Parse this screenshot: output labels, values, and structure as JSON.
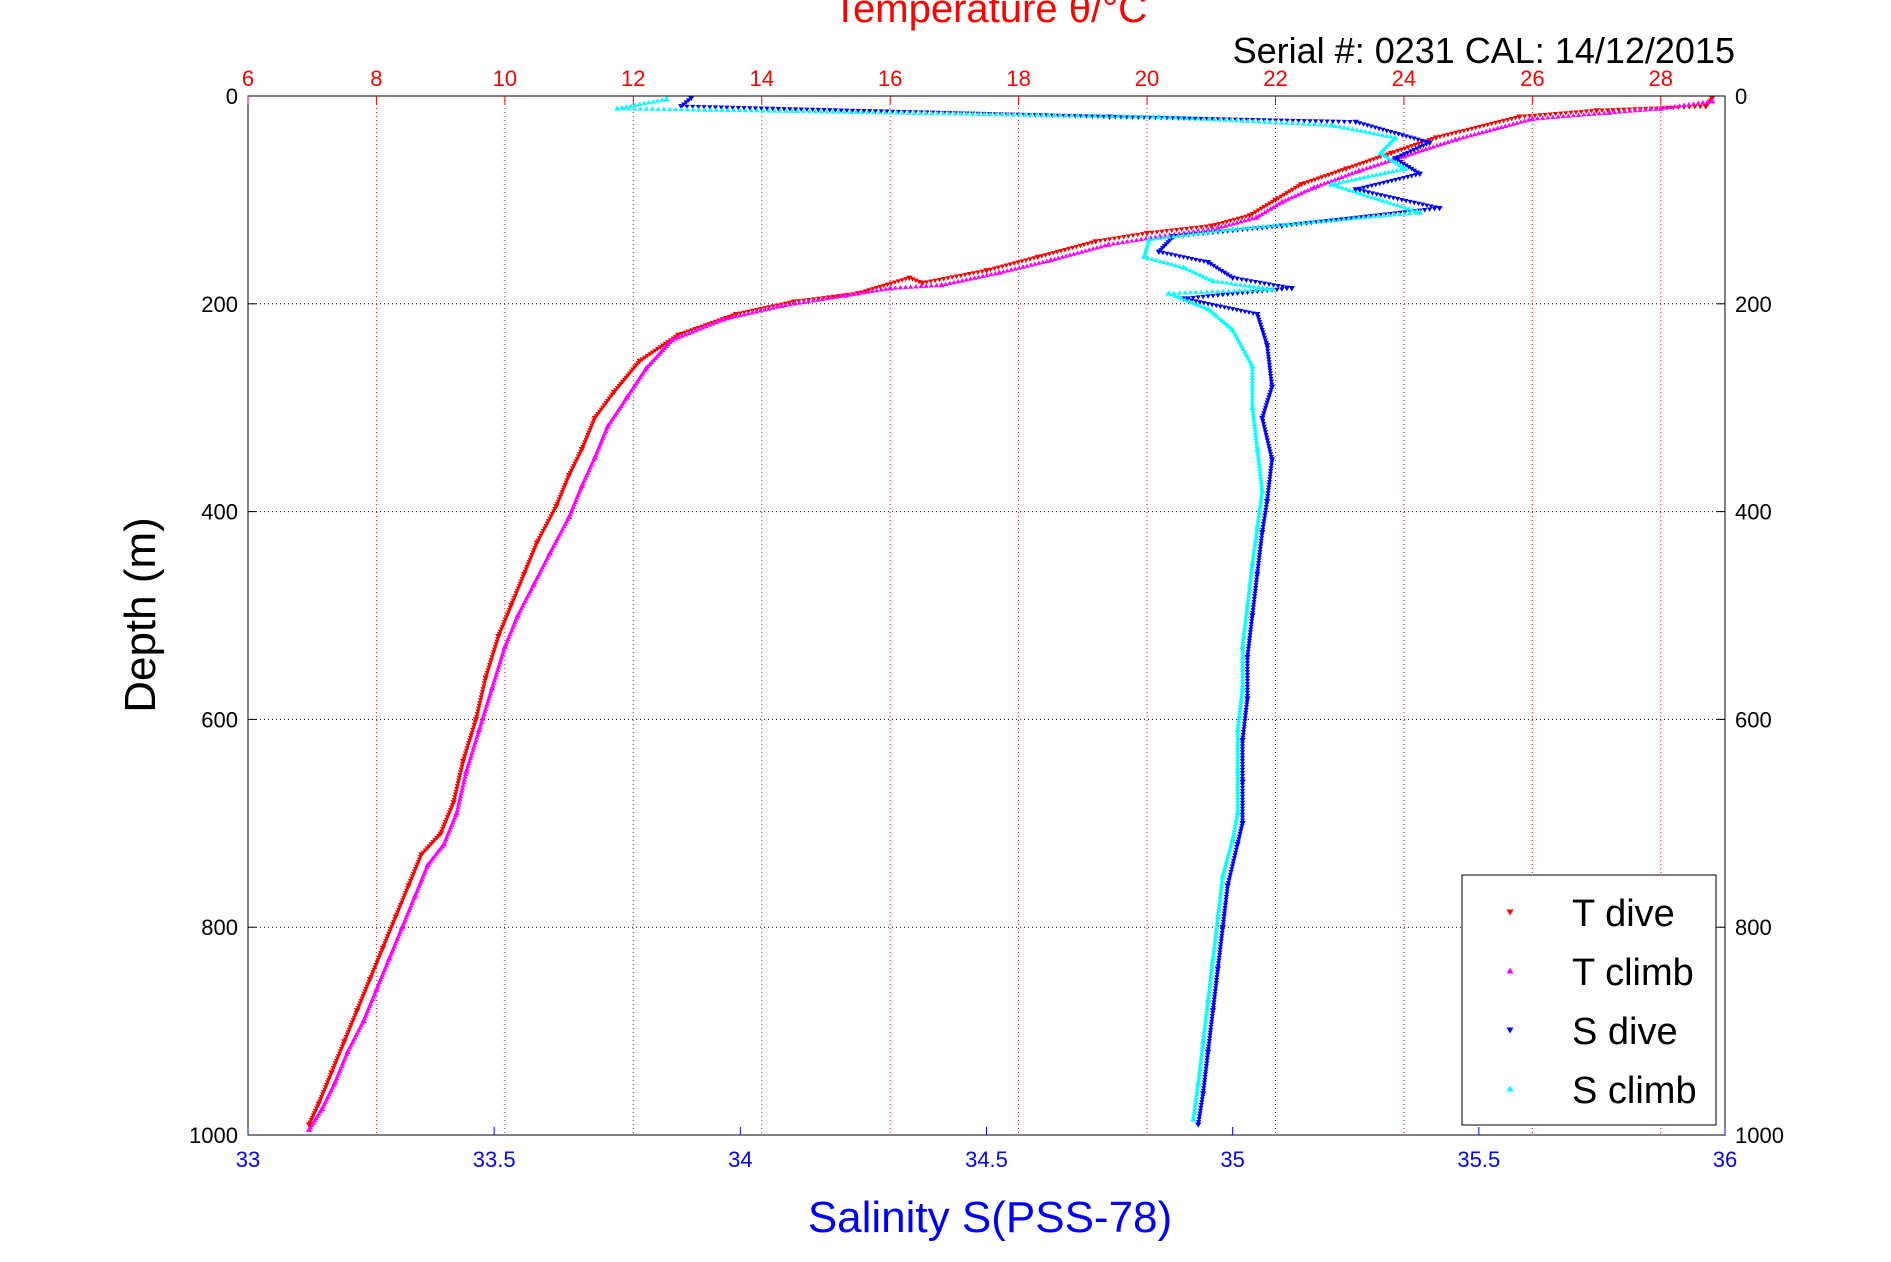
{
  "chart_data": {
    "type": "scatter",
    "title": "Temperature θ/°C",
    "subtitle": "Serial #: 0231  CAL: 14/12/2015",
    "ylabel": "Depth (m)",
    "xlabel_bottom": "Salinity S(PSS-78)",
    "xlabel_top": "Temperature θ/°C",
    "ylim": [
      0,
      1000
    ],
    "y_reversed": true,
    "y_ticks": [
      0,
      200,
      400,
      600,
      800,
      1000
    ],
    "salinity_lim": [
      33,
      36
    ],
    "salinity_ticks": [
      33,
      33.5,
      34,
      34.5,
      35,
      35.5,
      36
    ],
    "temperature_lim": [
      6,
      29
    ],
    "temperature_ticks": [
      6,
      8,
      10,
      12,
      14,
      16,
      18,
      20,
      22,
      24,
      26,
      28
    ],
    "grid": true,
    "legend_placement": "bottom-right",
    "series": [
      {
        "name": "T dive",
        "axis": "temperature",
        "color": "#ff0000",
        "marker": "triangle-down",
        "points": [
          [
            28.8,
            2
          ],
          [
            28.7,
            10
          ],
          [
            27,
            14
          ],
          [
            25.8,
            20
          ],
          [
            24.5,
            40
          ],
          [
            23.8,
            55
          ],
          [
            23.1,
            70
          ],
          [
            22.4,
            85
          ],
          [
            22,
            100
          ],
          [
            21.6,
            115
          ],
          [
            21,
            125
          ],
          [
            20,
            132
          ],
          [
            19.2,
            140
          ],
          [
            18.3,
            155
          ],
          [
            17.5,
            168
          ],
          [
            16.5,
            180
          ],
          [
            16.3,
            175
          ],
          [
            15.5,
            190
          ],
          [
            14.5,
            198
          ],
          [
            13.6,
            210
          ],
          [
            12.7,
            230
          ],
          [
            12.1,
            255
          ],
          [
            11.7,
            285
          ],
          [
            11.4,
            310
          ],
          [
            11.2,
            340
          ],
          [
            11,
            365
          ],
          [
            10.8,
            395
          ],
          [
            10.5,
            430
          ],
          [
            10.3,
            460
          ],
          [
            10.1,
            490
          ],
          [
            9.9,
            520
          ],
          [
            9.7,
            560
          ],
          [
            9.55,
            600
          ],
          [
            9.35,
            640
          ],
          [
            9.2,
            680
          ],
          [
            9.0,
            710
          ],
          [
            8.7,
            730
          ],
          [
            8.5,
            760
          ],
          [
            8.3,
            790
          ],
          [
            8.1,
            820
          ],
          [
            7.9,
            850
          ],
          [
            7.7,
            880
          ],
          [
            7.5,
            910
          ],
          [
            7.3,
            940
          ],
          [
            7.1,
            970
          ],
          [
            6.95,
            990
          ]
        ]
      },
      {
        "name": "T climb",
        "axis": "temperature",
        "color": "#ff00ff",
        "marker": "triangle-up",
        "points": [
          [
            28.8,
            5
          ],
          [
            28.0,
            12
          ],
          [
            27.2,
            16
          ],
          [
            26.0,
            22
          ],
          [
            24.8,
            42
          ],
          [
            24.0,
            58
          ],
          [
            23.3,
            72
          ],
          [
            22.6,
            88
          ],
          [
            22.1,
            102
          ],
          [
            21.7,
            117
          ],
          [
            21.1,
            127
          ],
          [
            20.2,
            135
          ],
          [
            19.4,
            143
          ],
          [
            18.5,
            158
          ],
          [
            17.7,
            170
          ],
          [
            16.8,
            182
          ],
          [
            16.0,
            185
          ],
          [
            15.3,
            192
          ],
          [
            14.3,
            202
          ],
          [
            13.4,
            215
          ],
          [
            12.6,
            235
          ],
          [
            12.2,
            262
          ],
          [
            11.9,
            290
          ],
          [
            11.6,
            318
          ],
          [
            11.4,
            348
          ],
          [
            11.2,
            375
          ],
          [
            11.0,
            405
          ],
          [
            10.7,
            440
          ],
          [
            10.45,
            470
          ],
          [
            10.2,
            500
          ],
          [
            10.0,
            530
          ],
          [
            9.8,
            570
          ],
          [
            9.6,
            610
          ],
          [
            9.4,
            650
          ],
          [
            9.25,
            690
          ],
          [
            9.05,
            720
          ],
          [
            8.8,
            740
          ],
          [
            8.6,
            770
          ],
          [
            8.4,
            800
          ],
          [
            8.2,
            830
          ],
          [
            8.0,
            860
          ],
          [
            7.8,
            890
          ],
          [
            7.55,
            920
          ],
          [
            7.35,
            950
          ],
          [
            7.15,
            975
          ],
          [
            6.95,
            995
          ]
        ]
      },
      {
        "name": "S dive",
        "axis": "salinity",
        "color": "#0000ff",
        "marker": "triangle-down",
        "points": [
          [
            33.9,
            2
          ],
          [
            33.88,
            10
          ],
          [
            34.75,
            20
          ],
          [
            35.25,
            25
          ],
          [
            35.4,
            45
          ],
          [
            35.33,
            60
          ],
          [
            35.38,
            75
          ],
          [
            35.25,
            90
          ],
          [
            35.42,
            108
          ],
          [
            35.1,
            125
          ],
          [
            34.88,
            135
          ],
          [
            34.85,
            150
          ],
          [
            34.95,
            160
          ],
          [
            35.0,
            175
          ],
          [
            35.12,
            185
          ],
          [
            34.9,
            195
          ],
          [
            35.05,
            210
          ],
          [
            35.07,
            240
          ],
          [
            35.08,
            280
          ],
          [
            35.06,
            310
          ],
          [
            35.08,
            350
          ],
          [
            35.07,
            390
          ],
          [
            35.06,
            420
          ],
          [
            35.05,
            460
          ],
          [
            35.04,
            500
          ],
          [
            35.03,
            540
          ],
          [
            35.03,
            580
          ],
          [
            35.02,
            620
          ],
          [
            35.02,
            660
          ],
          [
            35.02,
            700
          ],
          [
            35.01,
            720
          ],
          [
            34.99,
            760
          ],
          [
            34.98,
            800
          ],
          [
            34.97,
            840
          ],
          [
            34.96,
            880
          ],
          [
            34.95,
            920
          ],
          [
            34.94,
            960
          ],
          [
            34.93,
            990
          ]
        ]
      },
      {
        "name": "S climb",
        "axis": "salinity",
        "color": "#00ffff",
        "marker": "triangle-up",
        "points": [
          [
            33.85,
            3
          ],
          [
            33.75,
            12
          ],
          [
            34.85,
            20
          ],
          [
            35.2,
            28
          ],
          [
            35.33,
            40
          ],
          [
            35.3,
            55
          ],
          [
            35.35,
            70
          ],
          [
            35.2,
            85
          ],
          [
            35.38,
            112
          ],
          [
            35.0,
            128
          ],
          [
            34.83,
            138
          ],
          [
            34.82,
            155
          ],
          [
            34.9,
            165
          ],
          [
            34.96,
            178
          ],
          [
            35.08,
            186
          ],
          [
            34.87,
            190
          ],
          [
            34.95,
            205
          ],
          [
            35.0,
            225
          ],
          [
            35.04,
            260
          ],
          [
            35.04,
            300
          ],
          [
            35.05,
            340
          ],
          [
            35.06,
            380
          ],
          [
            35.05,
            415
          ],
          [
            35.04,
            450
          ],
          [
            35.03,
            490
          ],
          [
            35.02,
            530
          ],
          [
            35.02,
            570
          ],
          [
            35.01,
            610
          ],
          [
            35.01,
            650
          ],
          [
            35.01,
            690
          ],
          [
            35.0,
            715
          ],
          [
            34.98,
            750
          ],
          [
            34.97,
            790
          ],
          [
            34.96,
            830
          ],
          [
            34.95,
            870
          ],
          [
            34.94,
            910
          ],
          [
            34.93,
            950
          ],
          [
            34.92,
            985
          ]
        ]
      }
    ]
  }
}
